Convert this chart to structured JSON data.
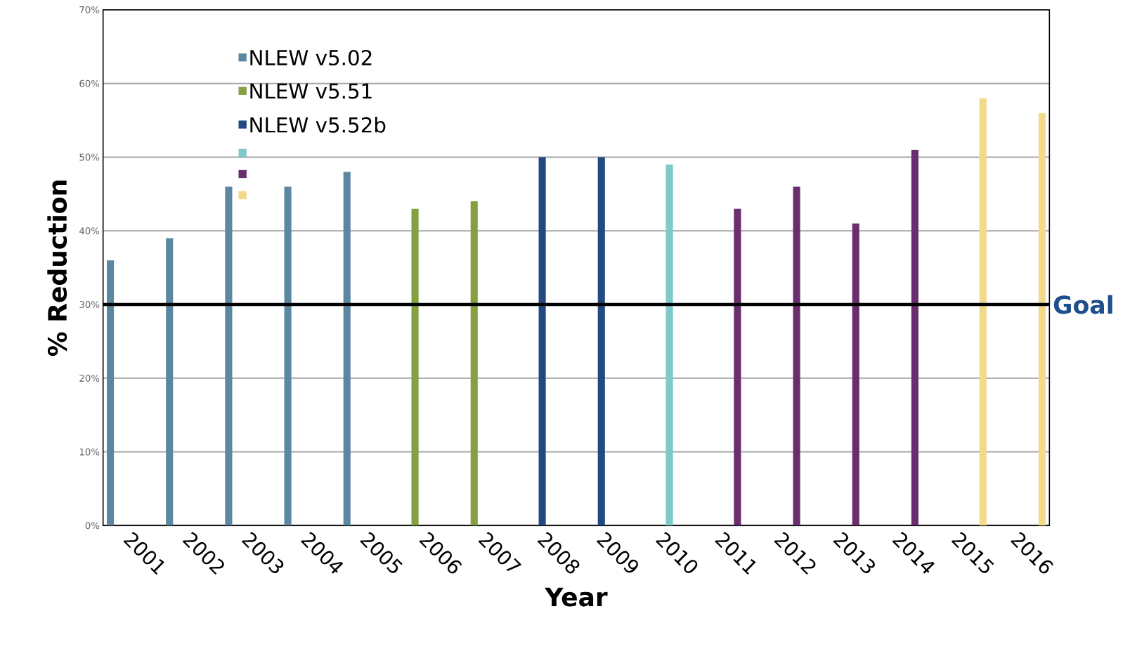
{
  "chart_data": {
    "type": "bar",
    "xlabel": "Year",
    "ylabel": "% Reduction",
    "categories": [
      "2001",
      "2002",
      "2003",
      "2004",
      "2005",
      "2006",
      "2007",
      "2008",
      "2009",
      "2010",
      "2011",
      "2012",
      "2013",
      "2014",
      "2015",
      "2016"
    ],
    "series": [
      {
        "name": "NLEW v5.02",
        "color": "#5b88a0",
        "values": [
          36,
          39,
          46,
          46,
          48,
          null,
          null,
          null,
          null,
          null,
          null,
          null,
          null,
          null,
          null,
          null
        ]
      },
      {
        "name": "NLEW v5.51",
        "color": "#84a040",
        "values": [
          null,
          null,
          null,
          null,
          null,
          43,
          44,
          null,
          null,
          null,
          null,
          null,
          null,
          null,
          null,
          null
        ]
      },
      {
        "name": "NLEW v5.52b",
        "color": "#234a80",
        "values": [
          null,
          null,
          null,
          null,
          null,
          null,
          null,
          50,
          50,
          null,
          null,
          null,
          null,
          null,
          null,
          null
        ]
      },
      {
        "color": "#7ecac8",
        "values": [
          null,
          null,
          null,
          null,
          null,
          null,
          null,
          null,
          null,
          49,
          null,
          null,
          null,
          null,
          null,
          null
        ]
      },
      {
        "color": "#6a2e6e",
        "values": [
          null,
          null,
          null,
          null,
          null,
          null,
          null,
          null,
          null,
          null,
          43,
          46,
          41,
          51,
          null,
          null
        ]
      },
      {
        "color": "#f3d98a",
        "values": [
          null,
          null,
          null,
          null,
          null,
          null,
          null,
          null,
          null,
          null,
          null,
          null,
          null,
          null,
          58,
          56
        ]
      }
    ],
    "ylim": [
      0,
      70
    ],
    "yticks": [
      {
        "value": 0,
        "label": "0%"
      },
      {
        "value": 10,
        "label": "10%"
      },
      {
        "value": 20,
        "label": "20%"
      },
      {
        "value": 30,
        "label": "30%"
      },
      {
        "value": 40,
        "label": "40%"
      },
      {
        "value": 50,
        "label": "50%"
      },
      {
        "value": 60,
        "label": "60%"
      },
      {
        "value": 70,
        "label": "70%"
      }
    ],
    "grid": "y",
    "legend": "top left",
    "ref_lines": [
      {
        "axis": "y",
        "value": 30,
        "label": "Goal",
        "color": "#000000"
      }
    ]
  }
}
